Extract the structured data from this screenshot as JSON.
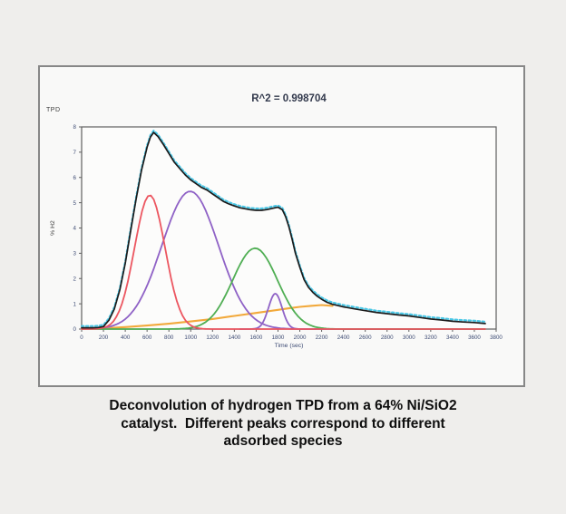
{
  "figure": {
    "corner_label": "TPD",
    "border_color": "#878787",
    "background": "#f9f9f8"
  },
  "caption": {
    "lines": [
      "Deconvolution of hydrogen TPD from a 64% Ni/SiO2",
      "catalyst.  Different peaks correspond to different",
      "adsorbed species"
    ]
  },
  "chart_data": {
    "type": "line",
    "title": "R^2 = 0.998704",
    "xlabel": "Time (sec)",
    "ylabel": "% H2",
    "xlim": [
      0,
      3800
    ],
    "ylim": [
      0,
      8
    ],
    "x_ticks": [
      0,
      200,
      400,
      600,
      800,
      1000,
      1200,
      1400,
      1600,
      1800,
      2000,
      2200,
      2400,
      2600,
      2800,
      3000,
      3200,
      3400,
      3600,
      3800
    ],
    "y_ticks": [
      0,
      1,
      2,
      3,
      4,
      5,
      6,
      7,
      8
    ],
    "grid": false,
    "legend": "none",
    "axis_color": "#5f5f5f",
    "plot_background": "#fcfcfb",
    "tick_label_color": "#3c4a73",
    "envelope": [
      [
        0,
        0.05
      ],
      [
        100,
        0.05
      ],
      [
        150,
        0.06
      ],
      [
        200,
        0.1
      ],
      [
        250,
        0.35
      ],
      [
        300,
        0.8
      ],
      [
        350,
        1.55
      ],
      [
        400,
        2.6
      ],
      [
        450,
        3.9
      ],
      [
        500,
        5.15
      ],
      [
        550,
        6.3
      ],
      [
        600,
        7.2
      ],
      [
        630,
        7.6
      ],
      [
        660,
        7.78
      ],
      [
        700,
        7.62
      ],
      [
        750,
        7.3
      ],
      [
        800,
        6.95
      ],
      [
        850,
        6.6
      ],
      [
        900,
        6.35
      ],
      [
        950,
        6.1
      ],
      [
        1000,
        5.9
      ],
      [
        1050,
        5.75
      ],
      [
        1100,
        5.6
      ],
      [
        1150,
        5.5
      ],
      [
        1200,
        5.35
      ],
      [
        1250,
        5.2
      ],
      [
        1300,
        5.05
      ],
      [
        1350,
        4.95
      ],
      [
        1400,
        4.87
      ],
      [
        1450,
        4.8
      ],
      [
        1500,
        4.76
      ],
      [
        1550,
        4.72
      ],
      [
        1600,
        4.7
      ],
      [
        1650,
        4.7
      ],
      [
        1700,
        4.73
      ],
      [
        1750,
        4.78
      ],
      [
        1800,
        4.82
      ],
      [
        1840,
        4.72
      ],
      [
        1870,
        4.45
      ],
      [
        1900,
        4.05
      ],
      [
        1930,
        3.55
      ],
      [
        1960,
        3.0
      ],
      [
        2000,
        2.45
      ],
      [
        2040,
        1.95
      ],
      [
        2080,
        1.65
      ],
      [
        2120,
        1.45
      ],
      [
        2160,
        1.3
      ],
      [
        2200,
        1.18
      ],
      [
        2250,
        1.06
      ],
      [
        2300,
        0.98
      ],
      [
        2350,
        0.93
      ],
      [
        2400,
        0.88
      ],
      [
        2500,
        0.8
      ],
      [
        2600,
        0.73
      ],
      [
        2700,
        0.66
      ],
      [
        2800,
        0.61
      ],
      [
        2900,
        0.56
      ],
      [
        3000,
        0.52
      ],
      [
        3100,
        0.46
      ],
      [
        3200,
        0.4
      ],
      [
        3300,
        0.36
      ],
      [
        3400,
        0.31
      ],
      [
        3500,
        0.28
      ],
      [
        3600,
        0.26
      ],
      [
        3700,
        0.22
      ]
    ],
    "series": [
      {
        "name": "background-species",
        "kind": "points",
        "color": "#f2a93b",
        "width": 2.1,
        "points": [
          [
            0,
            0.01
          ],
          [
            200,
            0.03
          ],
          [
            400,
            0.08
          ],
          [
            600,
            0.14
          ],
          [
            800,
            0.21
          ],
          [
            1000,
            0.3
          ],
          [
            1200,
            0.4
          ],
          [
            1400,
            0.52
          ],
          [
            1600,
            0.64
          ],
          [
            1800,
            0.76
          ],
          [
            1900,
            0.82
          ],
          [
            2000,
            0.88
          ],
          [
            2100,
            0.92
          ],
          [
            2200,
            0.95
          ],
          [
            2300,
            0.92
          ]
        ]
      },
      {
        "name": "peak-2-purple",
        "kind": "gaussian",
        "color": "#8f62c6",
        "width": 1.8,
        "center": 995,
        "sigma": 260,
        "amplitude": 5.45,
        "x_range": [
          0,
          3700
        ]
      },
      {
        "name": "peak-4-purple-small",
        "kind": "gaussian",
        "color": "#8f62c6",
        "width": 1.8,
        "center": 1775,
        "sigma": 62,
        "amplitude": 1.4,
        "x_range": [
          1450,
          2150
        ]
      },
      {
        "name": "peak-3-green",
        "kind": "gaussian",
        "color": "#4fae53",
        "width": 1.8,
        "center": 1590,
        "sigma": 205,
        "amplitude": 3.2,
        "x_range": [
          0,
          3700
        ]
      },
      {
        "name": "peak-1-red",
        "kind": "gaussian",
        "color": "#ec5660",
        "width": 1.8,
        "center": 625,
        "sigma": 140,
        "amplitude": 5.3,
        "x_range": [
          0,
          3700
        ]
      },
      {
        "name": "measured-data",
        "kind": "envelope",
        "style": "dashed",
        "color": "#49c7e6",
        "width": 2.2,
        "offset_y": 0.07
      },
      {
        "name": "total-fit",
        "kind": "envelope",
        "style": "solid",
        "color": "#1b1b1b",
        "width": 1.7
      }
    ]
  }
}
